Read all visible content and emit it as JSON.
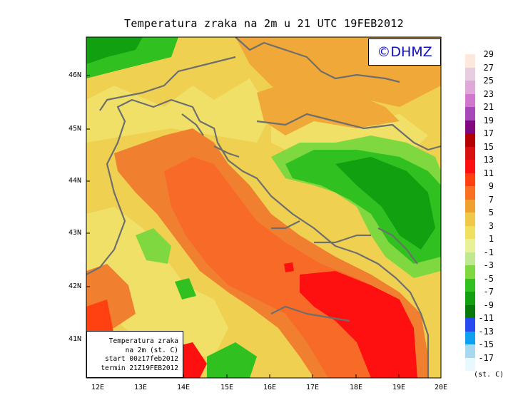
{
  "title": "Temperatura zraka na 2m u 21 UTC 19FEB2012",
  "logo": "©DHMZ",
  "info_box": {
    "line1": "Temperatura zraka",
    "line2": "na 2m (st. C)",
    "line3": "start 00z17feb2012",
    "line4": "termin 21Z19FEB2012"
  },
  "lat_labels": [
    "46N",
    "45N",
    "44N",
    "43N",
    "42N",
    "41N"
  ],
  "lon_labels": [
    "12E",
    "13E",
    "14E",
    "15E",
    "16E",
    "17E",
    "18E",
    "19E",
    "20E"
  ],
  "legend": {
    "unit": "(st. C)",
    "labels": [
      "29",
      "27",
      "25",
      "23",
      "21",
      "19",
      "17",
      "15",
      "13",
      "11",
      "9",
      "7",
      "5",
      "3",
      "1",
      "-1",
      "-3",
      "-5",
      "-7",
      "-9",
      "-11",
      "-13",
      "-15",
      "-17"
    ],
    "colors": [
      "#fce8dc",
      "#e8cce0",
      "#e0a8d8",
      "#d078d0",
      "#a848b8",
      "#800880",
      "#b40000",
      "#d81010",
      "#ff1010",
      "#ff4010",
      "#f87020",
      "#f0a030",
      "#f0c848",
      "#f0e060",
      "#e8f098",
      "#c0e890",
      "#80d840",
      "#30c020",
      "#10a010",
      "#087808",
      "#2848f0",
      "#10a0f0",
      "#a8d8f0",
      "#e8f8ff"
    ]
  },
  "colors": {
    "sea_warm": "#f87028",
    "sea_hot": "#ff1010",
    "land_mild": "#f0d050",
    "land_cold": "#30c020",
    "coastline": "#707070"
  }
}
